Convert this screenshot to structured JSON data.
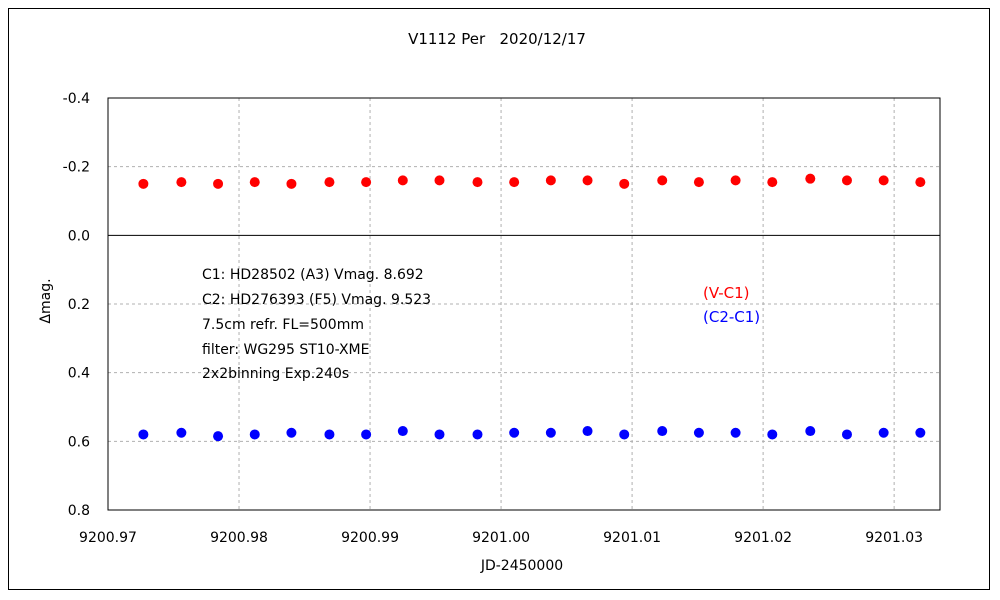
{
  "chart_data": {
    "type": "scatter",
    "title": "V1112 Per   2020/12/17",
    "xlabel": "JD-2450000",
    "ylabel": "Δmag.",
    "xlim": [
      9200.97,
      9201.0335
    ],
    "ylim": [
      0.8,
      -0.4
    ],
    "y_reversed": true,
    "grid": true,
    "x_ticks": [
      "9200.97",
      "9200.98",
      "9200.99",
      "9201.00",
      "9201.01",
      "9201.02",
      "9201.03"
    ],
    "x_tick_values": [
      9200.97,
      9200.98,
      9200.99,
      9201.0,
      9201.01,
      9201.02,
      9201.03
    ],
    "y_ticks": [
      "-0.4",
      "-0.2",
      "0.0",
      "0.2",
      "0.4",
      "0.6",
      "0.8"
    ],
    "y_tick_values": [
      -0.4,
      -0.2,
      0.0,
      0.2,
      0.4,
      0.6,
      0.8
    ],
    "notes": [
      "C1: HD28502 (A3) Vmag. 8.692",
      "C2: HD276393 (F5) Vmag. 9.523",
      "7.5cm refr. FL=500mm",
      "filter: WG295  ST10-XME",
      "2x2binning  Exp.240s"
    ],
    "series": [
      {
        "name": "(V-C1)",
        "color": "#ff0000",
        "x": [
          9200.9727,
          9200.9756,
          9200.9784,
          9200.9812,
          9200.984,
          9200.9869,
          9200.9897,
          9200.9925,
          9200.9953,
          9200.9982,
          9201.001,
          9201.0038,
          9201.0066,
          9201.0094,
          9201.0123,
          9201.0151,
          9201.0179,
          9201.0207,
          9201.0236,
          9201.0264,
          9201.0292,
          9201.032
        ],
        "y": [
          -0.15,
          -0.155,
          -0.15,
          -0.155,
          -0.15,
          -0.155,
          -0.155,
          -0.16,
          -0.16,
          -0.155,
          -0.155,
          -0.16,
          -0.16,
          -0.15,
          -0.16,
          -0.155,
          -0.16,
          -0.155,
          -0.165,
          -0.16,
          -0.16,
          -0.155
        ]
      },
      {
        "name": "(C2-C1)",
        "color": "#0000ff",
        "x": [
          9200.9727,
          9200.9756,
          9200.9784,
          9200.9812,
          9200.984,
          9200.9869,
          9200.9897,
          9200.9925,
          9200.9953,
          9200.9982,
          9201.001,
          9201.0038,
          9201.0066,
          9201.0094,
          9201.0123,
          9201.0151,
          9201.0179,
          9201.0207,
          9201.0236,
          9201.0264,
          9201.0292,
          9201.032
        ],
        "y": [
          0.58,
          0.575,
          0.585,
          0.58,
          0.575,
          0.58,
          0.58,
          0.57,
          0.58,
          0.58,
          0.575,
          0.575,
          0.57,
          0.58,
          0.57,
          0.575,
          0.575,
          0.58,
          0.57,
          0.58,
          0.575,
          0.575
        ]
      }
    ]
  }
}
